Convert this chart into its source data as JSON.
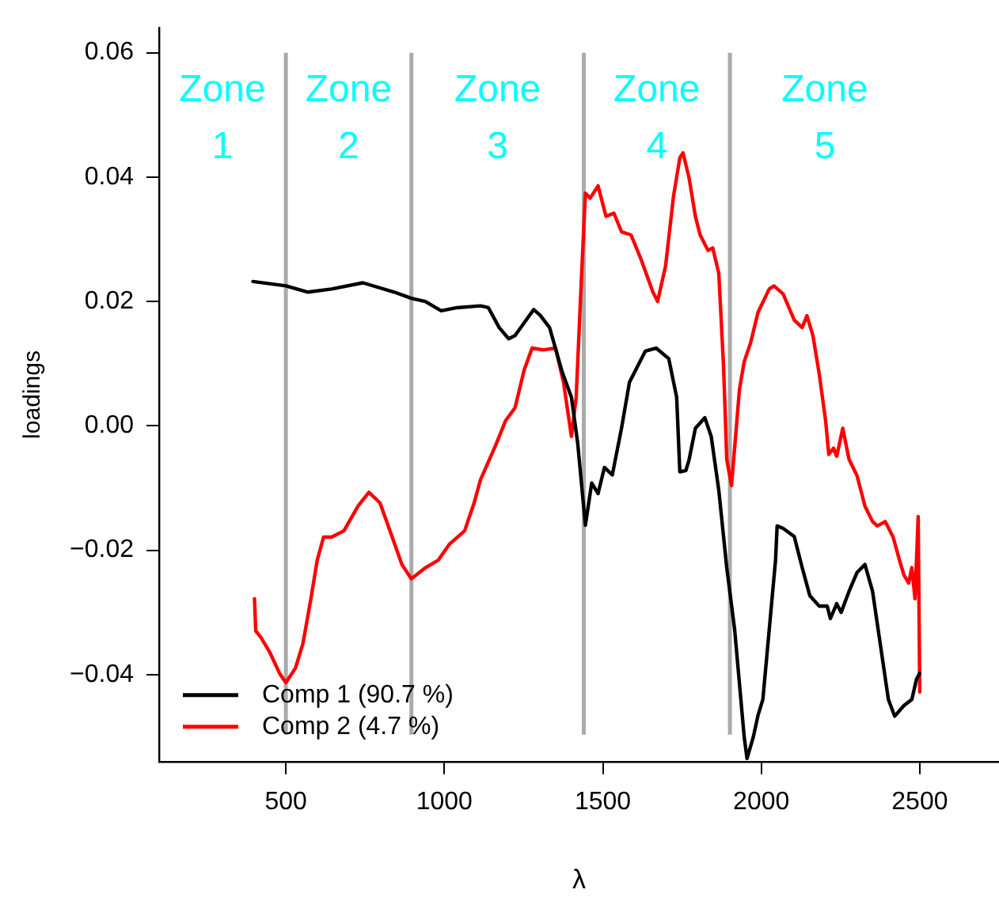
{
  "chart_data": {
    "type": "line",
    "xlabel": "λ",
    "ylabel": "loadings",
    "xlim": [
      100,
      2750
    ],
    "xticks": [
      500,
      1000,
      1500,
      2000,
      2500
    ],
    "ylim": [
      -0.054,
      0.064
    ],
    "yticks": [
      0.06,
      0.04,
      0.02,
      {
        "value": 0,
        "label": "0.00"
      },
      {
        "value": -0.02,
        "label": "−0.02"
      },
      {
        "value": -0.04,
        "label": "−0.04"
      }
    ],
    "grid": false,
    "legend": "bottom left",
    "marker": "none",
    "line_style": "solid",
    "ref_lines": [
      {
        "axis": "x",
        "value": 500,
        "color": "#aaaaaa"
      },
      {
        "axis": "x",
        "value": 896,
        "color": "#aaaaaa"
      },
      {
        "axis": "x",
        "value": 1440,
        "color": "#aaaaaa"
      },
      {
        "axis": "x",
        "value": 1901,
        "color": "#aaaaaa"
      }
    ],
    "annotations": [
      "Zone\n1",
      "Zone\n2",
      "Zone\n3",
      "Zone\n4",
      "Zone\n5"
    ],
    "series": [
      {
        "name": "Comp 1 (90.7 %)",
        "color": "#000000",
        "x": [
          396,
          500,
          570,
          644,
          743,
          842,
          896,
          940,
          990,
          1040,
          1114,
          1139,
          1173,
          1203,
          1223,
          1282,
          1302,
          1332,
          1371,
          1401,
          1421,
          1445,
          1465,
          1485,
          1505,
          1530,
          1559,
          1584,
          1634,
          1668,
          1708,
          1733,
          1743,
          1762,
          1772,
          1792,
          1822,
          1842,
          1866,
          1891,
          1916,
          1946,
          1955,
          1975,
          1990,
          2005,
          2025,
          2045,
          2050,
          2069,
          2104,
          2129,
          2153,
          2183,
          2208,
          2218,
          2238,
          2252,
          2277,
          2302,
          2327,
          2351,
          2376,
          2401,
          2421,
          2450,
          2475,
          2490,
          2500
        ],
        "values": [
          0.0232,
          0.0225,
          0.0215,
          0.022,
          0.023,
          0.0215,
          0.0205,
          0.02,
          0.0185,
          0.019,
          0.0193,
          0.019,
          0.0158,
          0.014,
          0.0145,
          0.0187,
          0.0178,
          0.0158,
          0.0088,
          0.0046,
          -0.0029,
          -0.016,
          -0.0092,
          -0.0109,
          -0.0067,
          -0.0079,
          -0.0004,
          0.007,
          0.012,
          0.0125,
          0.0108,
          0.0046,
          -0.0074,
          -0.0072,
          -0.0055,
          -0.0004,
          0.0013,
          -0.0017,
          -0.0104,
          -0.0228,
          -0.0328,
          -0.05,
          -0.0535,
          -0.05,
          -0.0465,
          -0.044,
          -0.0328,
          -0.0216,
          -0.0161,
          -0.0165,
          -0.0178,
          -0.0228,
          -0.0273,
          -0.029,
          -0.029,
          -0.031,
          -0.0286,
          -0.03,
          -0.0266,
          -0.0236,
          -0.0223,
          -0.0266,
          -0.0353,
          -0.044,
          -0.0467,
          -0.045,
          -0.044,
          -0.0407,
          -0.0398
        ]
      },
      {
        "name": "Comp 2 (4.7 %)",
        "color": "#ff0000",
        "x": [
          401,
          405,
          421,
          450,
          480,
          500,
          530,
          554,
          579,
          599,
          619,
          644,
          683,
          728,
          762,
          797,
          832,
          866,
          896,
          941,
          981,
          1015,
          1064,
          1094,
          1114,
          1163,
          1193,
          1223,
          1252,
          1277,
          1312,
          1351,
          1376,
          1401,
          1416,
          1431,
          1445,
          1460,
          1485,
          1510,
          1535,
          1559,
          1589,
          1619,
          1658,
          1673,
          1698,
          1723,
          1743,
          1753,
          1772,
          1792,
          1807,
          1832,
          1847,
          1866,
          1881,
          1891,
          1906,
          1921,
          1931,
          1946,
          1966,
          1990,
          2025,
          2040,
          2069,
          2104,
          2129,
          2144,
          2163,
          2183,
          2203,
          2213,
          2228,
          2238,
          2257,
          2277,
          2302,
          2327,
          2351,
          2366,
          2391,
          2416,
          2436,
          2450,
          2465,
          2475,
          2485,
          2495,
          2500
        ],
        "values": [
          -0.0278,
          -0.033,
          -0.034,
          -0.0365,
          -0.0398,
          -0.0413,
          -0.039,
          -0.035,
          -0.0278,
          -0.0216,
          -0.0179,
          -0.0179,
          -0.0169,
          -0.0129,
          -0.0107,
          -0.0124,
          -0.0174,
          -0.0223,
          -0.0246,
          -0.0228,
          -0.0216,
          -0.0191,
          -0.0169,
          -0.0124,
          -0.0087,
          -0.003,
          0.0008,
          0.0029,
          0.009,
          0.0125,
          0.0122,
          0.0125,
          0.007,
          -0.0017,
          0.0046,
          0.022,
          0.0374,
          0.0366,
          0.0386,
          0.0337,
          0.0342,
          0.0312,
          0.0307,
          0.027,
          0.0215,
          0.02,
          0.0257,
          0.0369,
          0.0431,
          0.0439,
          0.0399,
          0.0337,
          0.0307,
          0.0282,
          0.0286,
          0.0245,
          0.0095,
          -0.0054,
          -0.0096,
          -0.0004,
          0.0058,
          0.0103,
          0.0133,
          0.0183,
          0.022,
          0.0225,
          0.0212,
          0.017,
          0.0158,
          0.0177,
          0.0145,
          0.0083,
          0.0008,
          -0.0046,
          -0.0036,
          -0.0049,
          -0.0004,
          -0.0054,
          -0.008,
          -0.0129,
          -0.0154,
          -0.0161,
          -0.0154,
          -0.0179,
          -0.0216,
          -0.024,
          -0.0253,
          -0.0228,
          -0.0278,
          -0.0146,
          -0.0428
        ]
      }
    ]
  }
}
